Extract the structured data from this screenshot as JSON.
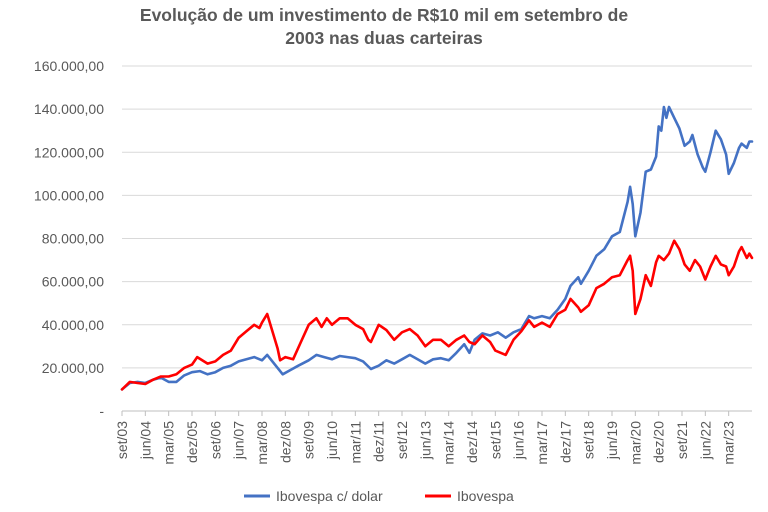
{
  "chart_data": {
    "type": "line",
    "title_lines": [
      "Evolução de um investimento de R$10 mil em setembro de",
      "2003 nas duas carteiras"
    ],
    "ylim": [
      0,
      160000
    ],
    "y_ticks": [
      {
        "value": 0,
        "label": "-"
      },
      {
        "value": 20000,
        "label": "20.000,00"
      },
      {
        "value": 40000,
        "label": "40.000,00"
      },
      {
        "value": 60000,
        "label": "60.000,00"
      },
      {
        "value": 80000,
        "label": "80.000,00"
      },
      {
        "value": 100000,
        "label": "100.000,00"
      },
      {
        "value": 120000,
        "label": "120.000,00"
      },
      {
        "value": 140000,
        "label": "140.000,00"
      },
      {
        "value": 160000,
        "label": "160.000,00"
      }
    ],
    "x_start": "2003-09",
    "x_end": "2023-12",
    "x_ticks": [
      "set/03",
      "jun/04",
      "mar/05",
      "dez/05",
      "set/06",
      "jun/07",
      "mar/08",
      "dez/08",
      "set/09",
      "jun/10",
      "mar/11",
      "dez/11",
      "set/12",
      "jun/13",
      "mar/14",
      "dez/14",
      "set/15",
      "jun/16",
      "mar/17",
      "dez/17",
      "set/18",
      "jun/19",
      "mar/20",
      "dez/20",
      "set/21",
      "jun/22",
      "mar/23"
    ],
    "grid": true,
    "legend_position": "bottom",
    "series": [
      {
        "name": "Ibovespa c/ dolar",
        "color": "#4472C4",
        "points": [
          [
            "2003-09",
            10000
          ],
          [
            "2003-12",
            13000
          ],
          [
            "2004-03",
            13500
          ],
          [
            "2004-06",
            13000
          ],
          [
            "2004-09",
            14500
          ],
          [
            "2004-12",
            15500
          ],
          [
            "2005-03",
            13500
          ],
          [
            "2005-06",
            13500
          ],
          [
            "2005-09",
            16500
          ],
          [
            "2005-12",
            18000
          ],
          [
            "2006-03",
            18500
          ],
          [
            "2006-06",
            17000
          ],
          [
            "2006-09",
            18000
          ],
          [
            "2006-12",
            20000
          ],
          [
            "2007-03",
            21000
          ],
          [
            "2007-06",
            23000
          ],
          [
            "2007-09",
            24000
          ],
          [
            "2007-12",
            25000
          ],
          [
            "2008-03",
            23500
          ],
          [
            "2008-05",
            26000
          ],
          [
            "2008-07",
            23000
          ],
          [
            "2008-09",
            20000
          ],
          [
            "2008-11",
            17000
          ],
          [
            "2009-02",
            19000
          ],
          [
            "2009-05",
            21000
          ],
          [
            "2009-09",
            23500
          ],
          [
            "2009-12",
            26000
          ],
          [
            "2010-03",
            25000
          ],
          [
            "2010-06",
            24000
          ],
          [
            "2010-09",
            25500
          ],
          [
            "2010-12",
            25000
          ],
          [
            "2011-03",
            24500
          ],
          [
            "2011-06",
            23000
          ],
          [
            "2011-09",
            19500
          ],
          [
            "2011-12",
            21000
          ],
          [
            "2012-03",
            23500
          ],
          [
            "2012-06",
            22000
          ],
          [
            "2012-09",
            24000
          ],
          [
            "2012-12",
            26000
          ],
          [
            "2013-03",
            24000
          ],
          [
            "2013-06",
            22000
          ],
          [
            "2013-09",
            24000
          ],
          [
            "2013-12",
            24500
          ],
          [
            "2014-03",
            23500
          ],
          [
            "2014-06",
            27000
          ],
          [
            "2014-09",
            31000
          ],
          [
            "2014-11",
            27000
          ],
          [
            "2015-01",
            33000
          ],
          [
            "2015-04",
            36000
          ],
          [
            "2015-07",
            35000
          ],
          [
            "2015-10",
            36500
          ],
          [
            "2016-01",
            34000
          ],
          [
            "2016-04",
            36500
          ],
          [
            "2016-07",
            38000
          ],
          [
            "2016-10",
            44000
          ],
          [
            "2016-12",
            43000
          ],
          [
            "2017-03",
            44000
          ],
          [
            "2017-06",
            43000
          ],
          [
            "2017-09",
            47000
          ],
          [
            "2017-12",
            52000
          ],
          [
            "2018-02",
            58000
          ],
          [
            "2018-05",
            62000
          ],
          [
            "2018-06",
            59000
          ],
          [
            "2018-09",
            65000
          ],
          [
            "2018-12",
            72000
          ],
          [
            "2019-03",
            75000
          ],
          [
            "2019-06",
            81000
          ],
          [
            "2019-09",
            83000
          ],
          [
            "2019-12",
            97000
          ],
          [
            "2020-01",
            104000
          ],
          [
            "2020-02",
            96000
          ],
          [
            "2020-03",
            81000
          ],
          [
            "2020-05",
            92000
          ],
          [
            "2020-07",
            111000
          ],
          [
            "2020-09",
            112000
          ],
          [
            "2020-11",
            118000
          ],
          [
            "2020-12",
            132000
          ],
          [
            "2021-01",
            130000
          ],
          [
            "2021-02",
            141000
          ],
          [
            "2021-03",
            136000
          ],
          [
            "2021-04",
            141000
          ],
          [
            "2021-06",
            136000
          ],
          [
            "2021-08",
            131000
          ],
          [
            "2021-10",
            123000
          ],
          [
            "2021-12",
            125000
          ],
          [
            "2022-01",
            128000
          ],
          [
            "2022-03",
            119000
          ],
          [
            "2022-05",
            113000
          ],
          [
            "2022-06",
            111000
          ],
          [
            "2022-08",
            120000
          ],
          [
            "2022-10",
            130000
          ],
          [
            "2022-12",
            126000
          ],
          [
            "2023-02",
            119000
          ],
          [
            "2023-03",
            110000
          ],
          [
            "2023-05",
            115000
          ],
          [
            "2023-07",
            122000
          ],
          [
            "2023-08",
            124000
          ],
          [
            "2023-10",
            122000
          ],
          [
            "2023-11",
            125000
          ],
          [
            "2023-12",
            125000
          ]
        ]
      },
      {
        "name": "Ibovespa",
        "color": "#FF0000",
        "points": [
          [
            "2003-09",
            10000
          ],
          [
            "2003-12",
            13500
          ],
          [
            "2004-03",
            13000
          ],
          [
            "2004-06",
            12500
          ],
          [
            "2004-09",
            14500
          ],
          [
            "2004-12",
            16000
          ],
          [
            "2005-03",
            16000
          ],
          [
            "2005-06",
            17000
          ],
          [
            "2005-09",
            20000
          ],
          [
            "2005-12",
            21500
          ],
          [
            "2006-02",
            25000
          ],
          [
            "2006-06",
            22000
          ],
          [
            "2006-09",
            23000
          ],
          [
            "2006-12",
            26000
          ],
          [
            "2007-03",
            28000
          ],
          [
            "2007-06",
            34000
          ],
          [
            "2007-09",
            37000
          ],
          [
            "2007-12",
            40000
          ],
          [
            "2008-02",
            38500
          ],
          [
            "2008-03",
            41000
          ],
          [
            "2008-05",
            45000
          ],
          [
            "2008-07",
            37000
          ],
          [
            "2008-09",
            29000
          ],
          [
            "2008-10",
            23500
          ],
          [
            "2008-12",
            25000
          ],
          [
            "2009-03",
            24000
          ],
          [
            "2009-06",
            32000
          ],
          [
            "2009-09",
            40000
          ],
          [
            "2009-12",
            43000
          ],
          [
            "2010-02",
            39000
          ],
          [
            "2010-04",
            43000
          ],
          [
            "2010-06",
            40000
          ],
          [
            "2010-09",
            43000
          ],
          [
            "2010-12",
            43000
          ],
          [
            "2011-03",
            40000
          ],
          [
            "2011-06",
            38000
          ],
          [
            "2011-08",
            33000
          ],
          [
            "2011-09",
            32000
          ],
          [
            "2011-12",
            40000
          ],
          [
            "2012-03",
            37500
          ],
          [
            "2012-06",
            33000
          ],
          [
            "2012-09",
            36500
          ],
          [
            "2012-12",
            38000
          ],
          [
            "2013-03",
            35000
          ],
          [
            "2013-06",
            30000
          ],
          [
            "2013-09",
            33000
          ],
          [
            "2013-12",
            33000
          ],
          [
            "2014-03",
            30000
          ],
          [
            "2014-06",
            33000
          ],
          [
            "2014-09",
            35000
          ],
          [
            "2014-11",
            32000
          ],
          [
            "2015-01",
            31000
          ],
          [
            "2015-04",
            35000
          ],
          [
            "2015-07",
            32000
          ],
          [
            "2015-09",
            28000
          ],
          [
            "2016-01",
            26000
          ],
          [
            "2016-04",
            33000
          ],
          [
            "2016-07",
            37000
          ],
          [
            "2016-10",
            42000
          ],
          [
            "2016-12",
            39000
          ],
          [
            "2017-03",
            41000
          ],
          [
            "2017-06",
            39000
          ],
          [
            "2017-09",
            45000
          ],
          [
            "2017-12",
            47000
          ],
          [
            "2018-02",
            52000
          ],
          [
            "2018-05",
            48000
          ],
          [
            "2018-06",
            46000
          ],
          [
            "2018-09",
            49000
          ],
          [
            "2018-12",
            57000
          ],
          [
            "2019-03",
            59000
          ],
          [
            "2019-06",
            62000
          ],
          [
            "2019-09",
            63000
          ],
          [
            "2019-12",
            70000
          ],
          [
            "2020-01",
            72000
          ],
          [
            "2020-02",
            65000
          ],
          [
            "2020-03",
            45000
          ],
          [
            "2020-05",
            52000
          ],
          [
            "2020-07",
            63000
          ],
          [
            "2020-09",
            58000
          ],
          [
            "2020-11",
            69000
          ],
          [
            "2020-12",
            72000
          ],
          [
            "2021-02",
            70000
          ],
          [
            "2021-04",
            73000
          ],
          [
            "2021-06",
            79000
          ],
          [
            "2021-08",
            75000
          ],
          [
            "2021-10",
            68000
          ],
          [
            "2021-12",
            65000
          ],
          [
            "2022-02",
            70000
          ],
          [
            "2022-04",
            67000
          ],
          [
            "2022-06",
            61000
          ],
          [
            "2022-08",
            67000
          ],
          [
            "2022-10",
            72000
          ],
          [
            "2022-12",
            68000
          ],
          [
            "2023-02",
            67000
          ],
          [
            "2023-03",
            63000
          ],
          [
            "2023-05",
            67000
          ],
          [
            "2023-07",
            74000
          ],
          [
            "2023-08",
            76000
          ],
          [
            "2023-10",
            71000
          ],
          [
            "2023-11",
            73000
          ],
          [
            "2023-12",
            71000
          ]
        ]
      }
    ]
  }
}
